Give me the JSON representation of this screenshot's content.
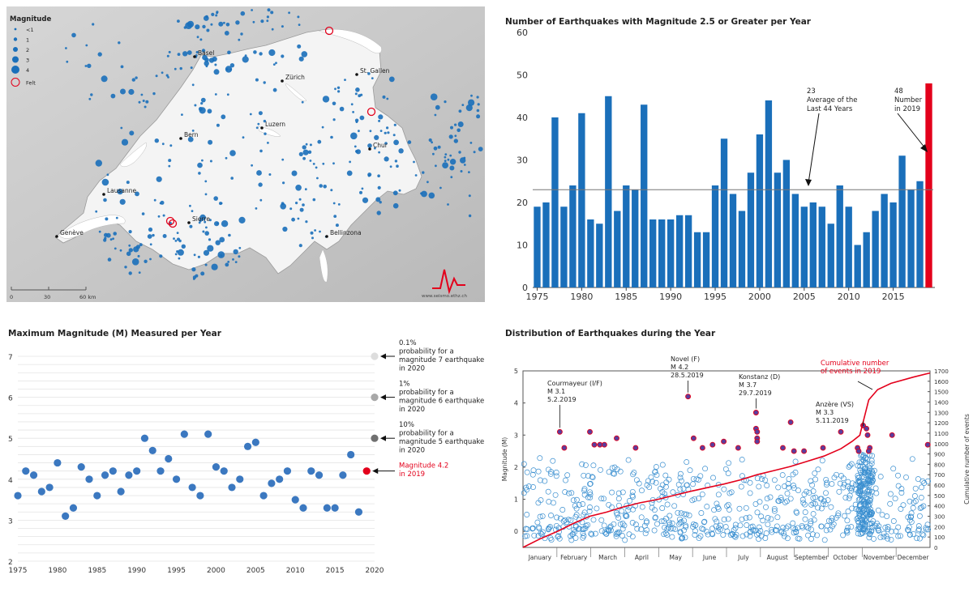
{
  "colors": {
    "blue": "#1a6fba",
    "red": "#e3001b",
    "grey": "#888888"
  },
  "map": {
    "legend_title": "Magnitude",
    "legend_items": [
      "<1",
      "1",
      "2",
      "3",
      "4",
      "Felt"
    ],
    "cities": [
      {
        "name": "Basel"
      },
      {
        "name": "Zürich"
      },
      {
        "name": "St. Gallen"
      },
      {
        "name": "Luzern"
      },
      {
        "name": "Bern"
      },
      {
        "name": "Chur"
      },
      {
        "name": "Lausanne"
      },
      {
        "name": "Sierre"
      },
      {
        "name": "Genève"
      },
      {
        "name": "Bellinzona"
      }
    ],
    "scale_labels": [
      "0",
      "30",
      "60 km"
    ],
    "credit": "www.seismo.ethz.ch"
  },
  "chart_data": [
    {
      "type": "bar",
      "title": "Number of Earthquakes with Magnitude 2.5 or Greater per Year",
      "x": [
        1975,
        1976,
        1977,
        1978,
        1979,
        1980,
        1981,
        1982,
        1983,
        1984,
        1985,
        1986,
        1987,
        1988,
        1989,
        1990,
        1991,
        1992,
        1993,
        1994,
        1995,
        1996,
        1997,
        1998,
        1999,
        2000,
        2001,
        2002,
        2003,
        2004,
        2005,
        2006,
        2007,
        2008,
        2009,
        2010,
        2011,
        2012,
        2013,
        2014,
        2015,
        2016,
        2017,
        2018,
        2019
      ],
      "values": [
        19,
        20,
        40,
        19,
        24,
        41,
        16,
        15,
        45,
        18,
        24,
        23,
        43,
        16,
        16,
        16,
        17,
        17,
        13,
        13,
        24,
        35,
        22,
        18,
        27,
        36,
        44,
        27,
        30,
        22,
        19,
        20,
        19,
        15,
        24,
        19,
        10,
        13,
        18,
        22,
        20,
        31,
        23,
        25,
        48
      ],
      "ylim": [
        0,
        60
      ],
      "yticks": [
        0,
        10,
        20,
        30,
        40,
        50,
        60
      ],
      "xticks": [
        1975,
        1980,
        1985,
        1990,
        1995,
        2000,
        2005,
        2010,
        2015
      ],
      "average": 23,
      "annotations": {
        "average_value": "23",
        "average_text_1": "Average of the",
        "average_text_2": "Last 44 Years",
        "latest_value": "48",
        "latest_text_1": "Number",
        "latest_text_2": "in 2019"
      }
    },
    {
      "type": "scatter",
      "title": "Maximum Magnitude (M) Measured per Year",
      "x": [
        1975,
        1976,
        1977,
        1978,
        1979,
        1980,
        1981,
        1982,
        1983,
        1984,
        1985,
        1986,
        1987,
        1988,
        1989,
        1990,
        1991,
        1992,
        1993,
        1994,
        1995,
        1996,
        1997,
        1998,
        1999,
        2000,
        2001,
        2002,
        2003,
        2004,
        2005,
        2006,
        2007,
        2008,
        2009,
        2010,
        2011,
        2012,
        2013,
        2014,
        2015,
        2016,
        2017,
        2018,
        2019
      ],
      "y": [
        3.6,
        4.2,
        4.1,
        3.7,
        3.8,
        4.4,
        3.1,
        3.3,
        4.3,
        4.0,
        3.6,
        4.1,
        4.2,
        3.7,
        4.1,
        4.2,
        5.0,
        4.7,
        4.2,
        4.5,
        4.0,
        5.1,
        3.8,
        3.6,
        5.1,
        4.3,
        4.2,
        3.8,
        4.0,
        4.8,
        4.9,
        3.6,
        3.9,
        4.0,
        4.2,
        3.5,
        3.3,
        4.2,
        4.1,
        3.3,
        3.3,
        4.1,
        4.6,
        3.2,
        4.2
      ],
      "ylim": [
        2,
        7
      ],
      "yticks": [
        2,
        3,
        4,
        5,
        6,
        7
      ],
      "xlim": [
        1975,
        2020
      ],
      "xticks": [
        1975,
        1980,
        1985,
        1990,
        1995,
        2000,
        2005,
        2010,
        2015,
        2020
      ],
      "probability_points": [
        {
          "year": 2020,
          "magnitude": 7,
          "color": "#dddddd",
          "lines": [
            "0.1%",
            "probability for a",
            "magnitude 7 earthquake",
            "in 2020"
          ]
        },
        {
          "year": 2020,
          "magnitude": 6,
          "color": "#a8a8a8",
          "lines": [
            "1%",
            "probability for a",
            "magnitude 6 earthquake",
            "in 2020"
          ]
        },
        {
          "year": 2020,
          "magnitude": 5,
          "color": "#707070",
          "lines": [
            "10%",
            "probability for a",
            "magnitude 5 earthquake",
            "in 2020"
          ]
        }
      ],
      "highlight_lines": [
        "Magnitude 4.2",
        "in 2019"
      ]
    },
    {
      "type": "scatter",
      "title": "Distribution of Earthquakes during the Year",
      "ylabel": "Magnitude (M)",
      "y2label": "Cumulative number of events",
      "ylim": [
        -0.5,
        5
      ],
      "yticks": [
        0,
        1,
        2,
        3,
        4,
        5
      ],
      "y2lim": [
        0,
        1700
      ],
      "y2ticks": [
        0,
        100,
        200,
        300,
        400,
        500,
        600,
        700,
        800,
        900,
        1000,
        1100,
        1200,
        1300,
        1400,
        1500,
        1600,
        1700
      ],
      "months": [
        "January",
        "February",
        "March",
        "April",
        "May",
        "June",
        "July",
        "August",
        "September",
        "October",
        "November",
        "December"
      ],
      "cumulative_label": [
        "Cumulative number",
        "of events in 2019"
      ],
      "cumulative": [
        [
          0,
          0
        ],
        [
          15,
          80
        ],
        [
          32,
          160
        ],
        [
          45,
          230
        ],
        [
          60,
          300
        ],
        [
          75,
          340
        ],
        [
          90,
          390
        ],
        [
          105,
          430
        ],
        [
          120,
          460
        ],
        [
          135,
          500
        ],
        [
          150,
          540
        ],
        [
          165,
          575
        ],
        [
          180,
          610
        ],
        [
          195,
          650
        ],
        [
          210,
          700
        ],
        [
          225,
          740
        ],
        [
          240,
          780
        ],
        [
          255,
          830
        ],
        [
          270,
          880
        ],
        [
          285,
          950
        ],
        [
          295,
          1020
        ],
        [
          302,
          1080
        ],
        [
          306,
          1250
        ],
        [
          310,
          1420
        ],
        [
          318,
          1520
        ],
        [
          330,
          1580
        ],
        [
          350,
          1640
        ],
        [
          365,
          1680
        ]
      ],
      "felt_events": [
        [
          33,
          3.1
        ],
        [
          37,
          2.6
        ],
        [
          60,
          3.1
        ],
        [
          64,
          2.7
        ],
        [
          69,
          2.7
        ],
        [
          73,
          2.7
        ],
        [
          84,
          2.9
        ],
        [
          101,
          2.6
        ],
        [
          148,
          4.2
        ],
        [
          153,
          2.9
        ],
        [
          161,
          2.6
        ],
        [
          170,
          2.7
        ],
        [
          180,
          2.8
        ],
        [
          193,
          2.6
        ],
        [
          209,
          3.7
        ],
        [
          209,
          3.2
        ],
        [
          210,
          3.1
        ],
        [
          210,
          2.9
        ],
        [
          210,
          2.8
        ],
        [
          233,
          2.6
        ],
        [
          240,
          3.4
        ],
        [
          243,
          2.5
        ],
        [
          252,
          2.5
        ],
        [
          269,
          2.6
        ],
        [
          285,
          3.1
        ],
        [
          300,
          2.6
        ],
        [
          301,
          2.5
        ],
        [
          305,
          3.3
        ],
        [
          308,
          3.2
        ],
        [
          309,
          3.0
        ],
        [
          311,
          2.6
        ],
        [
          310,
          2.5
        ],
        [
          331,
          3.0
        ],
        [
          363,
          2.7
        ]
      ],
      "annotations": [
        {
          "lines": [
            "Courmayeur (I/F)",
            "M 3.1",
            "5.2.2019"
          ],
          "day": 33,
          "mag": 3.1
        },
        {
          "lines": [
            "Novel (F)",
            "M 4.2",
            "28.5.2019"
          ],
          "day": 148,
          "mag": 4.2
        },
        {
          "lines": [
            "Konstanz (D)",
            "M 3.7",
            "29.7.2019"
          ],
          "day": 209,
          "mag": 3.7
        },
        {
          "lines": [
            "Anzère (VS)",
            "M 3.3",
            "5.11.2019"
          ],
          "day": 305,
          "mag": 3.3
        }
      ]
    }
  ]
}
